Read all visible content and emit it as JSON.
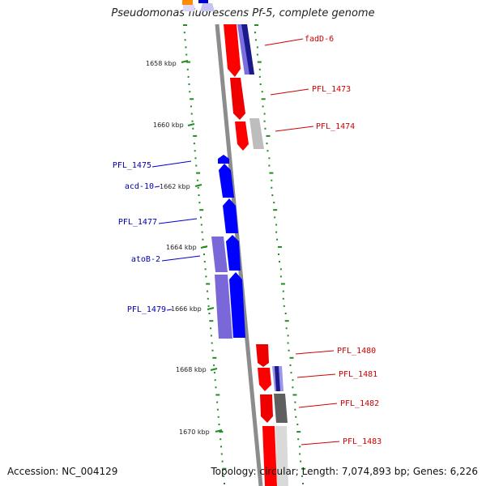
{
  "title": "Pseudomonas fluorescens Pf-5, complete genome",
  "footer": {
    "accession": "Accession: NC_004129",
    "summary": "Topology: circular; Length: 7,074,893 bp; Genes: 6,226"
  },
  "scale_labels": [
    "1658 kbp",
    "1660 kbp",
    "1662 kbp",
    "1664 kbp",
    "1666 kbp",
    "1668 kbp",
    "1670 kbp"
  ],
  "genes_reverse_strand": [
    "PFL_1475",
    "acd-10",
    "PFL_1477",
    "atoB-2",
    "PFL_1479"
  ],
  "genes_forward_strand": [
    "fadD-6",
    "PFL_1473",
    "PFL_1474",
    "PFL_1480",
    "PFL_1481",
    "PFL_1482",
    "PFL_1483"
  ],
  "colors": {
    "forward_cds": "#ff0000",
    "reverse_cds": "#0000ff",
    "forward_blast": "#7b68ee",
    "reverse_blast": "#8a2be2",
    "gray_feature": "#808080",
    "gc_skew_dots": "#228b22",
    "backbone": "#808080"
  }
}
